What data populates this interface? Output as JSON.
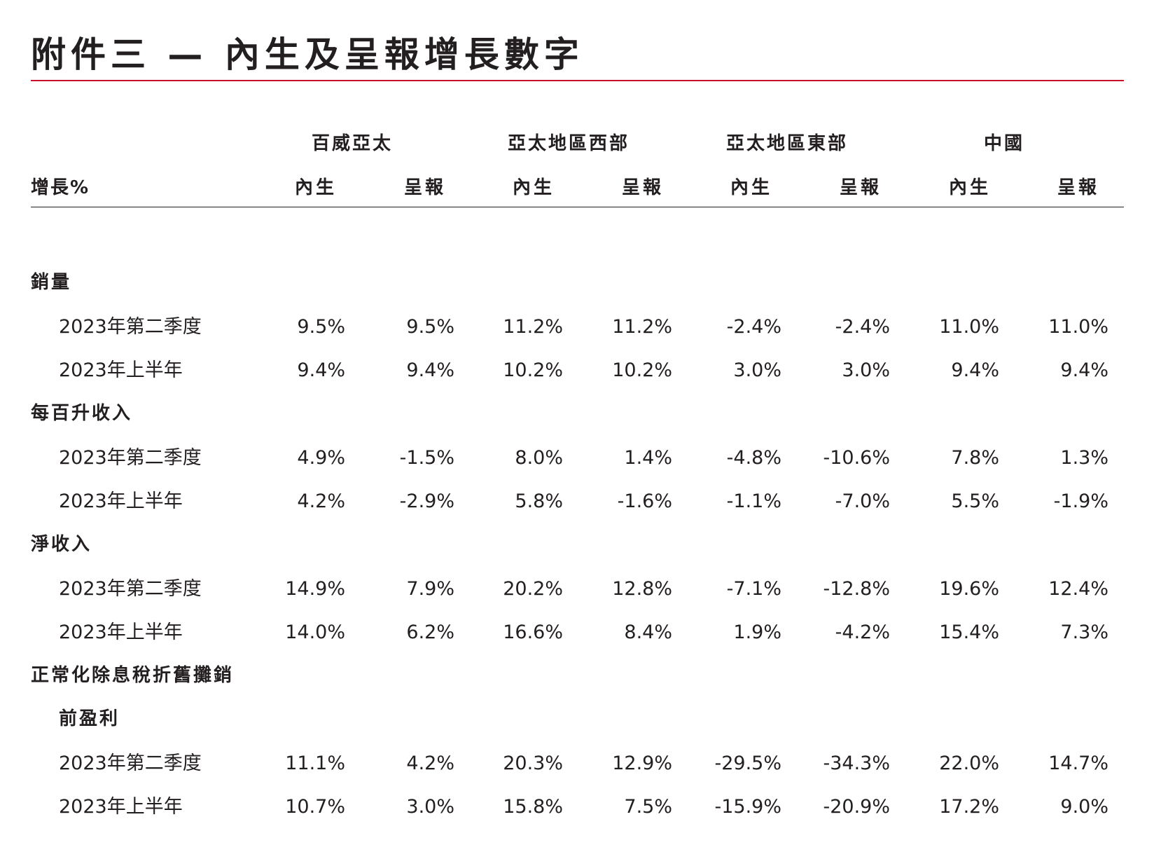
{
  "title": "附件三 — 內生及呈報增長數字",
  "header": {
    "growth_label": "增長%",
    "regions": [
      "百威亞太",
      "亞太地區西部",
      "亞太地區東部",
      "中國"
    ],
    "organic_label": "內生",
    "reported_label": "呈報"
  },
  "sections": [
    {
      "label": "銷量",
      "rows": [
        {
          "label": "2023年第二季度",
          "values": [
            "9.5%",
            "9.5%",
            "11.2%",
            "11.2%",
            "-2.4%",
            "-2.4%",
            "11.0%",
            "11.0%"
          ]
        },
        {
          "label": "2023年上半年",
          "values": [
            "9.4%",
            "9.4%",
            "10.2%",
            "10.2%",
            "3.0%",
            "3.0%",
            "9.4%",
            "9.4%"
          ]
        }
      ]
    },
    {
      "label": "每百升收入",
      "rows": [
        {
          "label": "2023年第二季度",
          "values": [
            "4.9%",
            "-1.5%",
            "8.0%",
            "1.4%",
            "-4.8%",
            "-10.6%",
            "7.8%",
            "1.3%"
          ]
        },
        {
          "label": "2023年上半年",
          "values": [
            "4.2%",
            "-2.9%",
            "5.8%",
            "-1.6%",
            "-1.1%",
            "-7.0%",
            "5.5%",
            "-1.9%"
          ]
        }
      ]
    },
    {
      "label": "淨收入",
      "rows": [
        {
          "label": "2023年第二季度",
          "values": [
            "14.9%",
            "7.9%",
            "20.2%",
            "12.8%",
            "-7.1%",
            "-12.8%",
            "19.6%",
            "12.4%"
          ]
        },
        {
          "label": "2023年上半年",
          "values": [
            "14.0%",
            "6.2%",
            "16.6%",
            "8.4%",
            "1.9%",
            "-4.2%",
            "15.4%",
            "7.3%"
          ]
        }
      ]
    },
    {
      "label": "正常化除息稅折舊攤銷",
      "sublabel": "前盈利",
      "rows": [
        {
          "label": "2023年第二季度",
          "values": [
            "11.1%",
            "4.2%",
            "20.3%",
            "12.9%",
            "-29.5%",
            "-34.3%",
            "22.0%",
            "14.7%"
          ]
        },
        {
          "label": "2023年上半年",
          "values": [
            "10.7%",
            "3.0%",
            "15.8%",
            "7.5%",
            "-15.9%",
            "-20.9%",
            "17.2%",
            "9.0%"
          ]
        }
      ]
    }
  ]
}
